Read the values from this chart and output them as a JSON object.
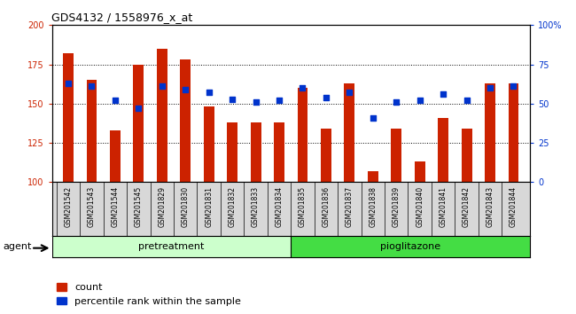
{
  "title": "GDS4132 / 1558976_x_at",
  "samples": [
    "GSM201542",
    "GSM201543",
    "GSM201544",
    "GSM201545",
    "GSM201829",
    "GSM201830",
    "GSM201831",
    "GSM201832",
    "GSM201833",
    "GSM201834",
    "GSM201835",
    "GSM201836",
    "GSM201837",
    "GSM201838",
    "GSM201839",
    "GSM201840",
    "GSM201841",
    "GSM201842",
    "GSM201843",
    "GSM201844"
  ],
  "counts": [
    182,
    165,
    133,
    175,
    185,
    178,
    148,
    138,
    138,
    138,
    160,
    134,
    163,
    107,
    134,
    113,
    141,
    134,
    163,
    163
  ],
  "pct_values": [
    63,
    61,
    52,
    47,
    61,
    59,
    57,
    53,
    51,
    52,
    60,
    54,
    57,
    41,
    51,
    52,
    56,
    52,
    60,
    61
  ],
  "bar_color": "#cc2200",
  "dot_color": "#0033cc",
  "ylim_left": [
    100,
    200
  ],
  "ylim_right": [
    0,
    100
  ],
  "yticks_left": [
    100,
    125,
    150,
    175,
    200
  ],
  "yticks_right": [
    0,
    25,
    50,
    75,
    100
  ],
  "gridlines_at": [
    125,
    150,
    175
  ],
  "group_split": 10,
  "group_labels": [
    "pretreatment",
    "pioglitazone"
  ],
  "pretreatment_color": "#ccffcc",
  "pioglitazone_color": "#44dd44",
  "bar_width": 0.45,
  "agent_label": "agent",
  "legend_count_label": "count",
  "legend_pct_label": "percentile rank within the sample",
  "left_tick_color": "#cc2200",
  "right_tick_color": "#0033cc",
  "title_fontsize": 9,
  "tick_fontsize": 7,
  "band_fontsize": 8,
  "legend_fontsize": 8
}
